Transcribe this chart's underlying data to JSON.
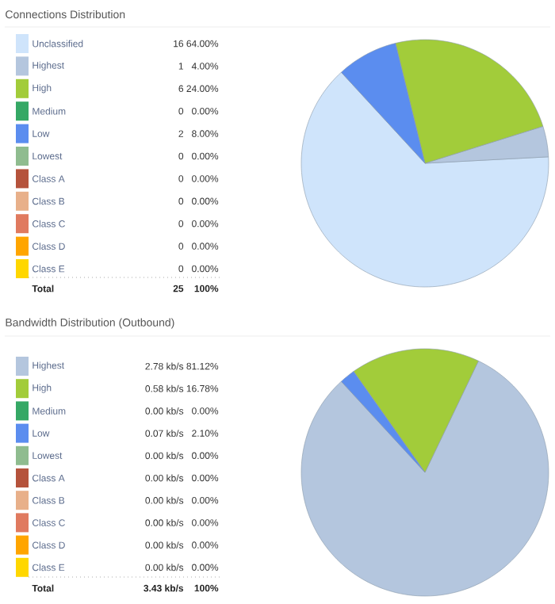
{
  "chart_data": [
    {
      "type": "pie",
      "title": "Connections Distribution",
      "legend": "left",
      "categories": [
        "Unclassified",
        "Highest",
        "High",
        "Medium",
        "Low",
        "Lowest",
        "Class A",
        "Class B",
        "Class C",
        "Class D",
        "Class E"
      ],
      "values": [
        16,
        1,
        6,
        0,
        2,
        0,
        0,
        0,
        0,
        0,
        0
      ],
      "colors": [
        "#cfe4fb",
        "#b4c6de",
        "#a2cc3a",
        "#35a865",
        "#5b8def",
        "#8fbc8f",
        "#b5533c",
        "#e8b08a",
        "#e07a5f",
        "#ffa500",
        "#ffd700"
      ],
      "value_labels": [
        "16",
        "1",
        "6",
        "0",
        "2",
        "0",
        "0",
        "0",
        "0",
        "0",
        "0"
      ],
      "annotations": [
        "64.00%",
        "4.00%",
        "24.00%",
        "0.00%",
        "8.00%",
        "0.00%",
        "0.00%",
        "0.00%",
        "0.00%",
        "0.00%",
        "0.00%",
        "Total",
        "25",
        "100%"
      ]
    },
    {
      "type": "pie",
      "title": "Bandwidth Distribution (Outbound)",
      "legend": "left",
      "categories": [
        "Highest",
        "High",
        "Medium",
        "Low",
        "Lowest",
        "Class A",
        "Class B",
        "Class C",
        "Class D",
        "Class E"
      ],
      "values": [
        2.78,
        0.58,
        0.0,
        0.07,
        0.0,
        0.0,
        0.0,
        0.0,
        0.0,
        0.0
      ],
      "colors": [
        "#b4c6de",
        "#a2cc3a",
        "#35a865",
        "#5b8def",
        "#8fbc8f",
        "#b5533c",
        "#e8b08a",
        "#e07a5f",
        "#ffa500",
        "#ffd700"
      ],
      "value_labels": [
        "2.78 kb/s",
        "0.58 kb/s",
        "0.00 kb/s",
        "0.07 kb/s",
        "0.00 kb/s",
        "0.00 kb/s",
        "0.00 kb/s",
        "0.00 kb/s",
        "0.00 kb/s",
        "0.00 kb/s"
      ],
      "annotations": [
        "81.12%",
        "16.78%",
        "0.00%",
        "2.10%",
        "0.00%",
        "0.00%",
        "0.00%",
        "0.00%",
        "0.00%",
        "0.00%",
        "Total",
        "3.43 kb/s",
        "100%"
      ]
    }
  ]
}
